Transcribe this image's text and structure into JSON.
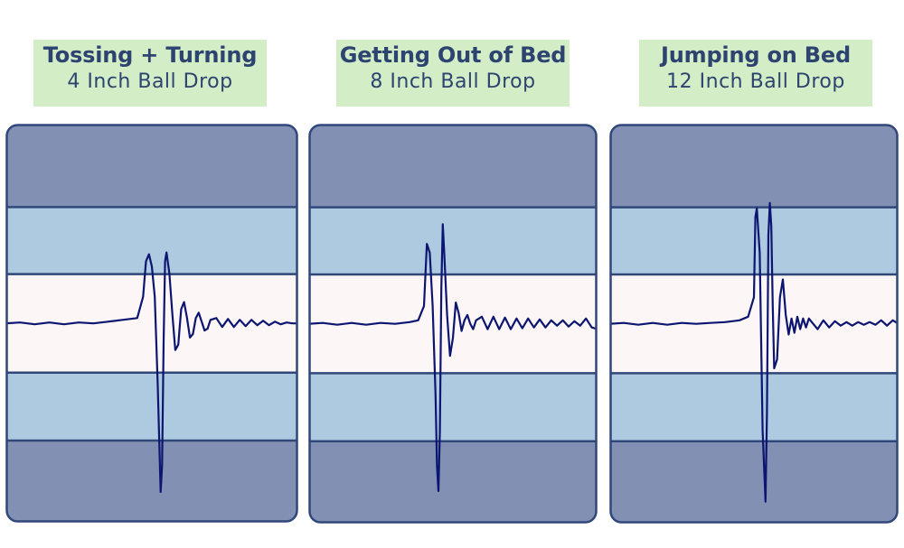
{
  "colors": {
    "label_bg": "#d3edc7",
    "label_text": "#2d4370",
    "band_outer": "#8290b3",
    "band_mid": "#adcae0",
    "band_center": "#fdf6f6",
    "band_border": "#30477a",
    "trace": "#0c1670"
  },
  "chart_data": [
    {
      "type": "line",
      "title": "Tossing + Turning",
      "subtitle": "4 Inch Ball Drop",
      "ylim": [
        -10,
        10
      ],
      "xlim": [
        0,
        100
      ],
      "series": [
        {
          "x": [
            0,
            5,
            10,
            15,
            20,
            25,
            30,
            35,
            40,
            45,
            47,
            48,
            49,
            50,
            51,
            52,
            52.5,
            53,
            53.5,
            54,
            54.5,
            55,
            56,
            57,
            58,
            59,
            60,
            61,
            62,
            63,
            64,
            65,
            66,
            67,
            68,
            69,
            70,
            72,
            74,
            76,
            78,
            80,
            82,
            84,
            86,
            88,
            90,
            92,
            94,
            96,
            98,
            100
          ],
          "y": [
            0,
            0.05,
            -0.05,
            0.05,
            -0.05,
            0.05,
            0,
            0.1,
            0.2,
            0.3,
            1.5,
            3.5,
            3.9,
            3.2,
            1.5,
            -3.5,
            -6.5,
            -9.5,
            -8,
            -1,
            3.5,
            4.0,
            2.8,
            0.5,
            -1.5,
            -1.2,
            0.8,
            1.2,
            0.3,
            -0.8,
            -0.6,
            0.3,
            0.6,
            0.1,
            -0.4,
            -0.3,
            0.2,
            0.3,
            -0.2,
            0.25,
            -0.2,
            0.2,
            -0.15,
            0.2,
            -0.1,
            0.15,
            -0.1,
            0.1,
            -0.05,
            0.05,
            0,
            0
          ]
        }
      ]
    },
    {
      "type": "line",
      "title": "Getting Out of Bed",
      "subtitle": "8 Inch Ball Drop",
      "ylim": [
        -10,
        10
      ],
      "xlim": [
        0,
        100
      ],
      "series": [
        {
          "x": [
            0,
            5,
            10,
            15,
            20,
            25,
            30,
            35,
            38,
            40,
            41,
            42,
            43,
            44,
            44.5,
            45,
            45.5,
            46,
            46.5,
            47,
            48,
            49,
            50,
            51,
            52,
            53,
            54,
            55,
            56,
            57,
            58,
            60,
            62,
            64,
            66,
            68,
            70,
            72,
            74,
            76,
            78,
            80,
            82,
            84,
            86,
            88,
            90,
            92,
            94,
            96,
            98,
            100
          ],
          "y": [
            0,
            0.05,
            -0.05,
            0.05,
            -0.05,
            0.05,
            0,
            0.1,
            0.2,
            1.0,
            4.5,
            4.0,
            1.0,
            -4.0,
            -8.0,
            -9.4,
            -6.0,
            2.0,
            5.6,
            4.0,
            0.5,
            -1.8,
            -0.8,
            1.2,
            0.6,
            -0.4,
            0.2,
            0.5,
            0,
            -0.3,
            0.2,
            0.4,
            -0.3,
            0.4,
            -0.3,
            0.35,
            -0.3,
            0.3,
            -0.25,
            0.3,
            -0.2,
            0.25,
            -0.2,
            0.2,
            -0.1,
            0.2,
            -0.15,
            0.15,
            -0.1,
            0.3,
            -0.2,
            -0.3
          ]
        }
      ]
    },
    {
      "type": "line",
      "title": "Jumping on Bed",
      "subtitle": "12 Inch Ball Drop",
      "ylim": [
        -10,
        10
      ],
      "xlim": [
        0,
        100
      ],
      "series": [
        {
          "x": [
            0,
            5,
            10,
            15,
            20,
            25,
            30,
            35,
            40,
            45,
            48,
            50,
            50.5,
            51,
            52,
            53,
            54,
            54.5,
            55,
            55.5,
            56,
            56.5,
            57,
            58,
            59,
            60,
            61,
            62,
            63,
            64,
            65,
            66,
            67,
            68,
            69,
            70,
            72,
            74,
            76,
            78,
            80,
            82,
            84,
            86,
            88,
            90,
            92,
            94,
            96,
            98,
            100
          ],
          "y": [
            0,
            0.05,
            -0.05,
            0.05,
            -0.05,
            0.05,
            0,
            0.05,
            0.1,
            0.2,
            0.4,
            1.5,
            6.0,
            6.5,
            4.0,
            -6.0,
            -10.0,
            -5.0,
            5.0,
            6.8,
            5.5,
            1.0,
            -2.5,
            -2.0,
            1.5,
            2.5,
            0.5,
            -0.6,
            0.3,
            -0.5,
            0.4,
            -0.3,
            0.3,
            -0.2,
            0.3,
            0.1,
            -0.3,
            0.2,
            -0.2,
            0.15,
            -0.1,
            0.1,
            -0.1,
            0.1,
            -0.05,
            0.1,
            -0.05,
            0.2,
            -0.1,
            0.2,
            0
          ]
        }
      ]
    }
  ]
}
